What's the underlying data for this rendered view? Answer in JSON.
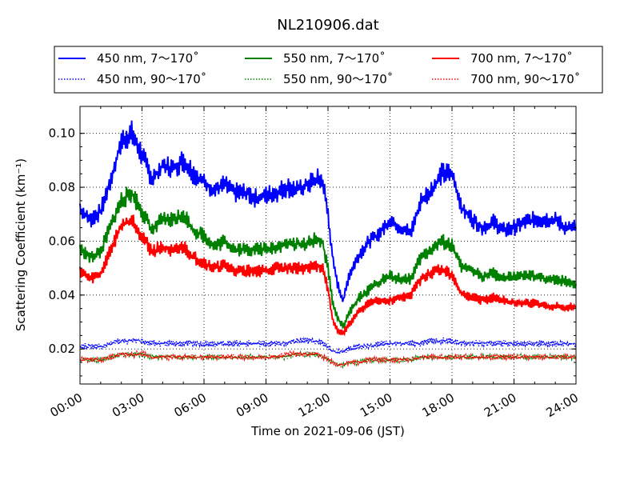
{
  "chart_data": {
    "type": "line",
    "title": "NL210906.dat",
    "xlabel": "Time on 2021-09-06 (JST)",
    "ylabel": "Scattering Coefficient (km⁻¹)",
    "xlim_hours": [
      0,
      24
    ],
    "ylim": [
      0.007,
      0.11
    ],
    "grid": true,
    "legend_position": "top",
    "x_ticks": [
      "00:00",
      "03:00",
      "06:00",
      "09:00",
      "12:00",
      "15:00",
      "18:00",
      "21:00",
      "24:00"
    ],
    "y_ticks": [
      "0.02",
      "0.04",
      "0.06",
      "0.08",
      "0.10"
    ],
    "x_hours": [
      0,
      0.5,
      1,
      1.5,
      2,
      2.5,
      3,
      3.5,
      4,
      4.5,
      5,
      5.5,
      6,
      6.5,
      7,
      7.5,
      8,
      8.5,
      9,
      9.5,
      10,
      10.5,
      11,
      11.5,
      11.75,
      12,
      12.25,
      12.5,
      12.75,
      13,
      13.5,
      14,
      14.5,
      15,
      15.5,
      16,
      16.5,
      17,
      17.5,
      18,
      18.5,
      19,
      19.5,
      20,
      20.5,
      21,
      21.5,
      22,
      22.5,
      23,
      23.5,
      24
    ],
    "series": [
      {
        "name": "450 nm, 7～170˚",
        "color": "#0000ff",
        "dash": "solid",
        "values": [
          0.072,
          0.068,
          0.071,
          0.083,
          0.097,
          0.1,
          0.092,
          0.083,
          0.088,
          0.087,
          0.09,
          0.085,
          0.082,
          0.079,
          0.081,
          0.078,
          0.078,
          0.076,
          0.077,
          0.078,
          0.08,
          0.079,
          0.081,
          0.083,
          0.082,
          0.07,
          0.052,
          0.043,
          0.038,
          0.047,
          0.055,
          0.06,
          0.063,
          0.068,
          0.065,
          0.063,
          0.075,
          0.079,
          0.085,
          0.085,
          0.072,
          0.068,
          0.065,
          0.067,
          0.064,
          0.065,
          0.067,
          0.068,
          0.068,
          0.068,
          0.065,
          0.065
        ]
      },
      {
        "name": "450 nm, 90～170˚",
        "color": "#0000ff",
        "dash": "dotted",
        "values": [
          0.021,
          0.021,
          0.021,
          0.022,
          0.023,
          0.023,
          0.023,
          0.022,
          0.022,
          0.022,
          0.022,
          0.022,
          0.022,
          0.022,
          0.022,
          0.022,
          0.022,
          0.022,
          0.022,
          0.022,
          0.022,
          0.023,
          0.023,
          0.023,
          0.022,
          0.021,
          0.019,
          0.019,
          0.019,
          0.02,
          0.021,
          0.021,
          0.022,
          0.022,
          0.022,
          0.022,
          0.022,
          0.023,
          0.023,
          0.023,
          0.022,
          0.022,
          0.022,
          0.022,
          0.022,
          0.022,
          0.022,
          0.022,
          0.022,
          0.022,
          0.022,
          0.022
        ]
      },
      {
        "name": "550 nm, 7～170˚",
        "color": "#008000",
        "dash": "solid",
        "values": [
          0.057,
          0.054,
          0.056,
          0.066,
          0.075,
          0.078,
          0.071,
          0.064,
          0.068,
          0.068,
          0.07,
          0.064,
          0.062,
          0.058,
          0.06,
          0.057,
          0.057,
          0.057,
          0.057,
          0.058,
          0.059,
          0.059,
          0.059,
          0.061,
          0.059,
          0.05,
          0.036,
          0.031,
          0.028,
          0.033,
          0.039,
          0.042,
          0.045,
          0.047,
          0.046,
          0.046,
          0.054,
          0.057,
          0.06,
          0.058,
          0.05,
          0.049,
          0.047,
          0.048,
          0.046,
          0.047,
          0.047,
          0.047,
          0.046,
          0.046,
          0.045,
          0.044
        ]
      },
      {
        "name": "550 nm, 90～170˚",
        "color": "#008000",
        "dash": "dotted",
        "values": [
          0.016,
          0.016,
          0.016,
          0.017,
          0.018,
          0.018,
          0.018,
          0.017,
          0.017,
          0.017,
          0.017,
          0.017,
          0.017,
          0.017,
          0.017,
          0.017,
          0.017,
          0.017,
          0.017,
          0.017,
          0.017,
          0.018,
          0.018,
          0.018,
          0.017,
          0.016,
          0.015,
          0.014,
          0.014,
          0.015,
          0.015,
          0.016,
          0.016,
          0.016,
          0.016,
          0.016,
          0.017,
          0.017,
          0.017,
          0.017,
          0.017,
          0.017,
          0.017,
          0.017,
          0.017,
          0.017,
          0.017,
          0.017,
          0.017,
          0.017,
          0.017,
          0.017
        ]
      },
      {
        "name": "700 nm, 7～170˚",
        "color": "#ff0000",
        "dash": "solid",
        "values": [
          0.049,
          0.046,
          0.048,
          0.057,
          0.066,
          0.068,
          0.062,
          0.056,
          0.058,
          0.056,
          0.058,
          0.054,
          0.052,
          0.05,
          0.051,
          0.049,
          0.049,
          0.049,
          0.049,
          0.05,
          0.05,
          0.05,
          0.05,
          0.051,
          0.05,
          0.042,
          0.03,
          0.026,
          0.026,
          0.029,
          0.034,
          0.037,
          0.038,
          0.038,
          0.039,
          0.04,
          0.046,
          0.048,
          0.05,
          0.047,
          0.04,
          0.039,
          0.038,
          0.039,
          0.038,
          0.037,
          0.037,
          0.037,
          0.036,
          0.036,
          0.035,
          0.036
        ]
      },
      {
        "name": "700 nm, 90～170˚",
        "color": "#ff0000",
        "dash": "dotted",
        "values": [
          0.016,
          0.016,
          0.016,
          0.017,
          0.018,
          0.018,
          0.018,
          0.017,
          0.017,
          0.017,
          0.017,
          0.017,
          0.017,
          0.017,
          0.017,
          0.017,
          0.017,
          0.017,
          0.017,
          0.017,
          0.018,
          0.018,
          0.018,
          0.018,
          0.017,
          0.016,
          0.015,
          0.014,
          0.014,
          0.015,
          0.015,
          0.016,
          0.016,
          0.016,
          0.016,
          0.016,
          0.017,
          0.017,
          0.017,
          0.017,
          0.017,
          0.017,
          0.017,
          0.017,
          0.017,
          0.017,
          0.017,
          0.017,
          0.017,
          0.017,
          0.017,
          0.017
        ]
      }
    ]
  }
}
